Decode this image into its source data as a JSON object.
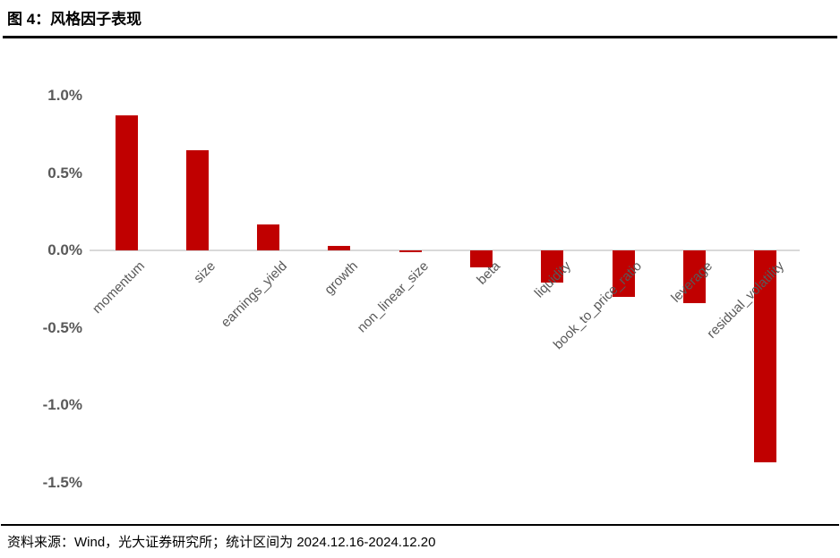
{
  "title": "图 4：风格因子表现",
  "footer": "资料来源：Wind，光大证券研究所；统计区间为 2024.12.16-2024.12.20",
  "chart_data": {
    "type": "bar",
    "title": "图 4：风格因子表现",
    "categories": [
      "momentum",
      "size",
      "earnings_yield",
      "growth",
      "non_linear_size",
      "beta",
      "liquidity",
      "book_to_price_ratio",
      "leverage",
      "residual_volatility"
    ],
    "values": [
      0.87,
      0.65,
      0.17,
      0.03,
      -0.01,
      -0.11,
      -0.21,
      -0.3,
      -0.34,
      -1.37
    ],
    "value_unit": "%",
    "xlabel": "",
    "ylabel": "",
    "ylim": [
      -1.5,
      1.0
    ],
    "yticks": [
      1.0,
      0.5,
      0.0,
      -0.5,
      -1.0,
      -1.5
    ],
    "ytick_labels": [
      "1.0%",
      "0.5%",
      "0.0%",
      "-0.5%",
      "-1.0%",
      "-1.5%"
    ],
    "grid": false,
    "legend": false,
    "bar_color": "#c00000",
    "axis_line_color": "#d9d9d9",
    "tick_label_color": "#595959"
  }
}
